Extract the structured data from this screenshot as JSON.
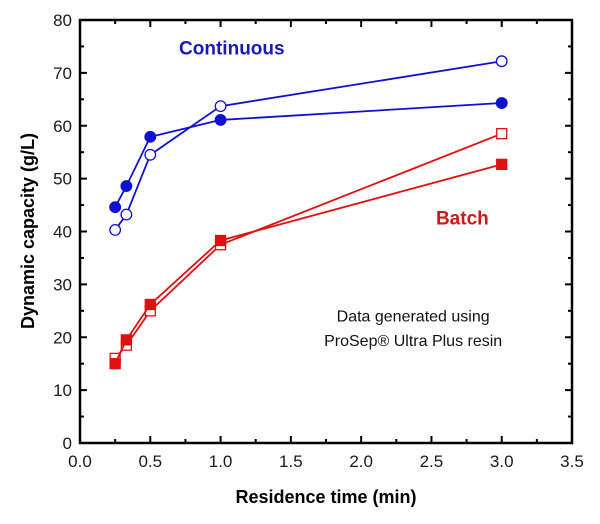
{
  "chart_data": {
    "type": "line",
    "title": "",
    "xlabel": "Residence time (min)",
    "ylabel": "Dynamic capacity (g/L)",
    "xlim": [
      0,
      3.5
    ],
    "ylim": [
      0,
      80
    ],
    "x_ticks": [
      0.0,
      0.5,
      1.0,
      1.5,
      2.0,
      2.5,
      3.0,
      3.5
    ],
    "x_tick_labels": [
      "0.0",
      "0.5",
      "1.0",
      "1.5",
      "2.0",
      "2.5",
      "3.0",
      "3.5"
    ],
    "x_minor_step": 0.25,
    "y_ticks": [
      0,
      10,
      20,
      30,
      40,
      50,
      60,
      70,
      80
    ],
    "y_tick_labels": [
      "0",
      "10",
      "20",
      "30",
      "40",
      "50",
      "60",
      "70",
      "80"
    ],
    "y_minor_step": 5,
    "grid": false,
    "legend": "none",
    "series": [
      {
        "name": "Continuous (open)",
        "group": "Continuous",
        "marker": "circle",
        "filled": false,
        "color": "#1010d0",
        "x": [
          0.25,
          0.33,
          0.5,
          1.0,
          3.0
        ],
        "y": [
          40.3,
          43.2,
          54.5,
          63.7,
          72.2
        ]
      },
      {
        "name": "Continuous (filled)",
        "group": "Continuous",
        "marker": "circle",
        "filled": true,
        "color": "#1010d0",
        "x": [
          0.25,
          0.33,
          0.5,
          1.0,
          3.0
        ],
        "y": [
          44.6,
          48.6,
          57.9,
          61.1,
          64.3
        ]
      },
      {
        "name": "Batch (open)",
        "group": "Batch",
        "marker": "square",
        "filled": false,
        "color": "#e01010",
        "x": [
          0.25,
          0.33,
          0.5,
          1.0,
          3.0
        ],
        "y": [
          16.0,
          18.5,
          25.0,
          37.5,
          58.5
        ]
      },
      {
        "name": "Batch (filled)",
        "group": "Batch",
        "marker": "square",
        "filled": true,
        "color": "#e01010",
        "x": [
          0.25,
          0.33,
          0.5,
          1.0,
          3.0
        ],
        "y": [
          15.0,
          19.5,
          26.2,
          38.3,
          52.7
        ]
      }
    ],
    "annotations": [
      {
        "text": "Continuous",
        "x": 1.08,
        "y": 73.5,
        "color": "#1a1ab8",
        "bold": true
      },
      {
        "text": "Batch",
        "x": 2.72,
        "y": 41.3,
        "color": "#d01818",
        "bold": true
      },
      {
        "text": "Data generated using",
        "x": 2.37,
        "y": 23.0,
        "color": "#111111",
        "bold": false
      },
      {
        "text": "ProSep® Ultra Plus resin",
        "x": 2.37,
        "y": 18.3,
        "color": "#111111",
        "bold": false
      }
    ]
  }
}
